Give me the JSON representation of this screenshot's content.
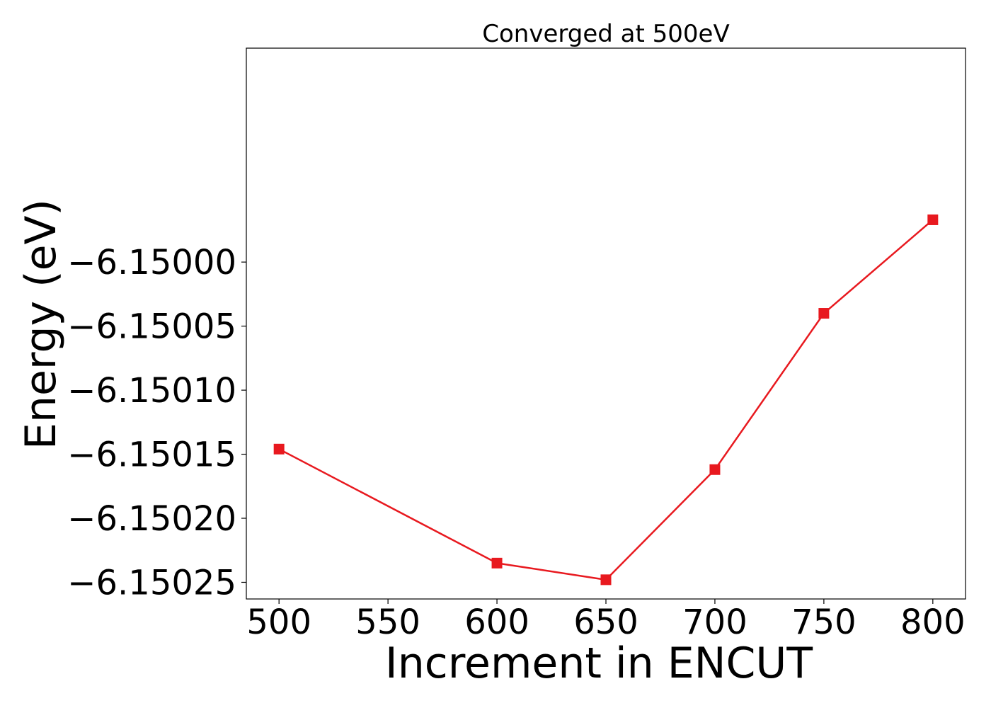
{
  "chart_data": {
    "type": "line",
    "title": "Converged at 500eV",
    "xlabel": "Increment in ENCUT",
    "ylabel": "Energy (eV)",
    "xlim": [
      485,
      815
    ],
    "ylim": [
      -6.150263,
      -6.149833
    ],
    "x_ticks": [
      500,
      550,
      600,
      650,
      700,
      750,
      800
    ],
    "x_tick_labels": [
      "500",
      "550",
      "600",
      "650",
      "700",
      "750",
      "800"
    ],
    "y_ticks": [
      -6.15,
      -6.15005,
      -6.1501,
      -6.15015,
      -6.1502,
      -6.15025
    ],
    "y_tick_labels": [
      "−6.15000",
      "−6.15005",
      "−6.15010",
      "−6.15015",
      "−6.15020",
      "−6.15025"
    ],
    "grid": false,
    "series": [
      {
        "color": "#e8191f",
        "marker": "square",
        "x": [
          500,
          600,
          650,
          700,
          750,
          800
        ],
        "y": [
          -6.150146,
          -6.150235,
          -6.150248,
          -6.150162,
          -6.15004,
          -6.149967
        ]
      }
    ]
  }
}
